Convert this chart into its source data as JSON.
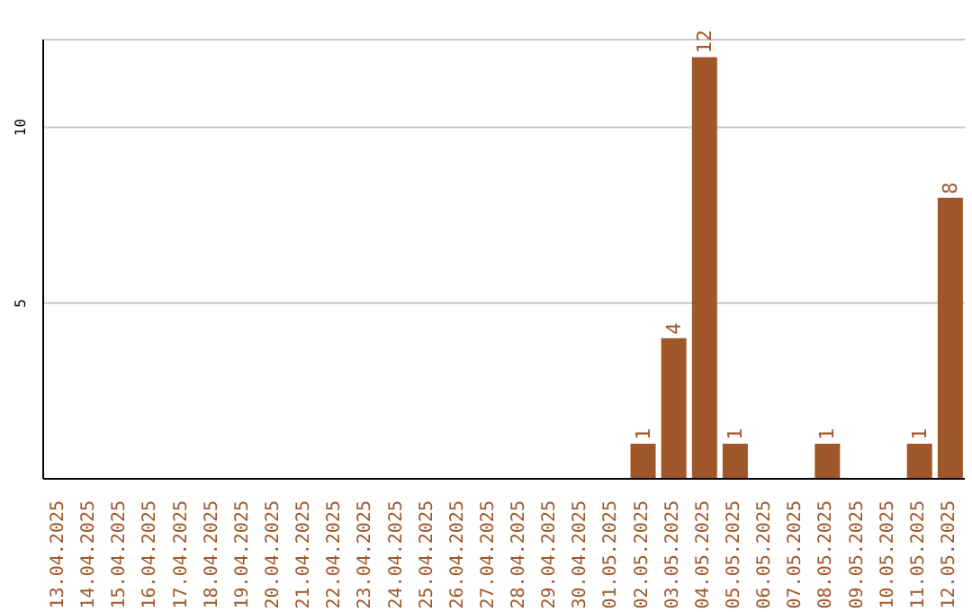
{
  "chart_data": {
    "type": "bar",
    "categories": [
      "13.04.2025",
      "14.04.2025",
      "15.04.2025",
      "16.04.2025",
      "17.04.2025",
      "18.04.2025",
      "19.04.2025",
      "20.04.2025",
      "21.04.2025",
      "22.04.2025",
      "23.04.2025",
      "24.04.2025",
      "25.04.2025",
      "26.04.2025",
      "27.04.2025",
      "28.04.2025",
      "29.04.2025",
      "30.04.2025",
      "01.05.2025",
      "02.05.2025",
      "03.05.2025",
      "04.05.2025",
      "05.05.2025",
      "06.05.2025",
      "07.05.2025",
      "08.05.2025",
      "09.05.2025",
      "10.05.2025",
      "11.05.2025",
      "12.05.2025"
    ],
    "values": [
      0,
      0,
      0,
      0,
      0,
      0,
      0,
      0,
      0,
      0,
      0,
      0,
      0,
      0,
      0,
      0,
      0,
      0,
      0,
      1,
      4,
      12,
      1,
      0,
      0,
      1,
      0,
      0,
      1,
      8
    ],
    "value_labels": [
      null,
      null,
      null,
      null,
      null,
      null,
      null,
      null,
      null,
      null,
      null,
      null,
      null,
      null,
      null,
      null,
      null,
      null,
      null,
      "1",
      "4",
      "12",
      "1",
      null,
      null,
      "1",
      null,
      null,
      "1",
      "8"
    ],
    "color": "#a0572a",
    "ylim": [
      0,
      12.5
    ],
    "yticks": [
      5,
      10
    ],
    "grid": "y"
  }
}
